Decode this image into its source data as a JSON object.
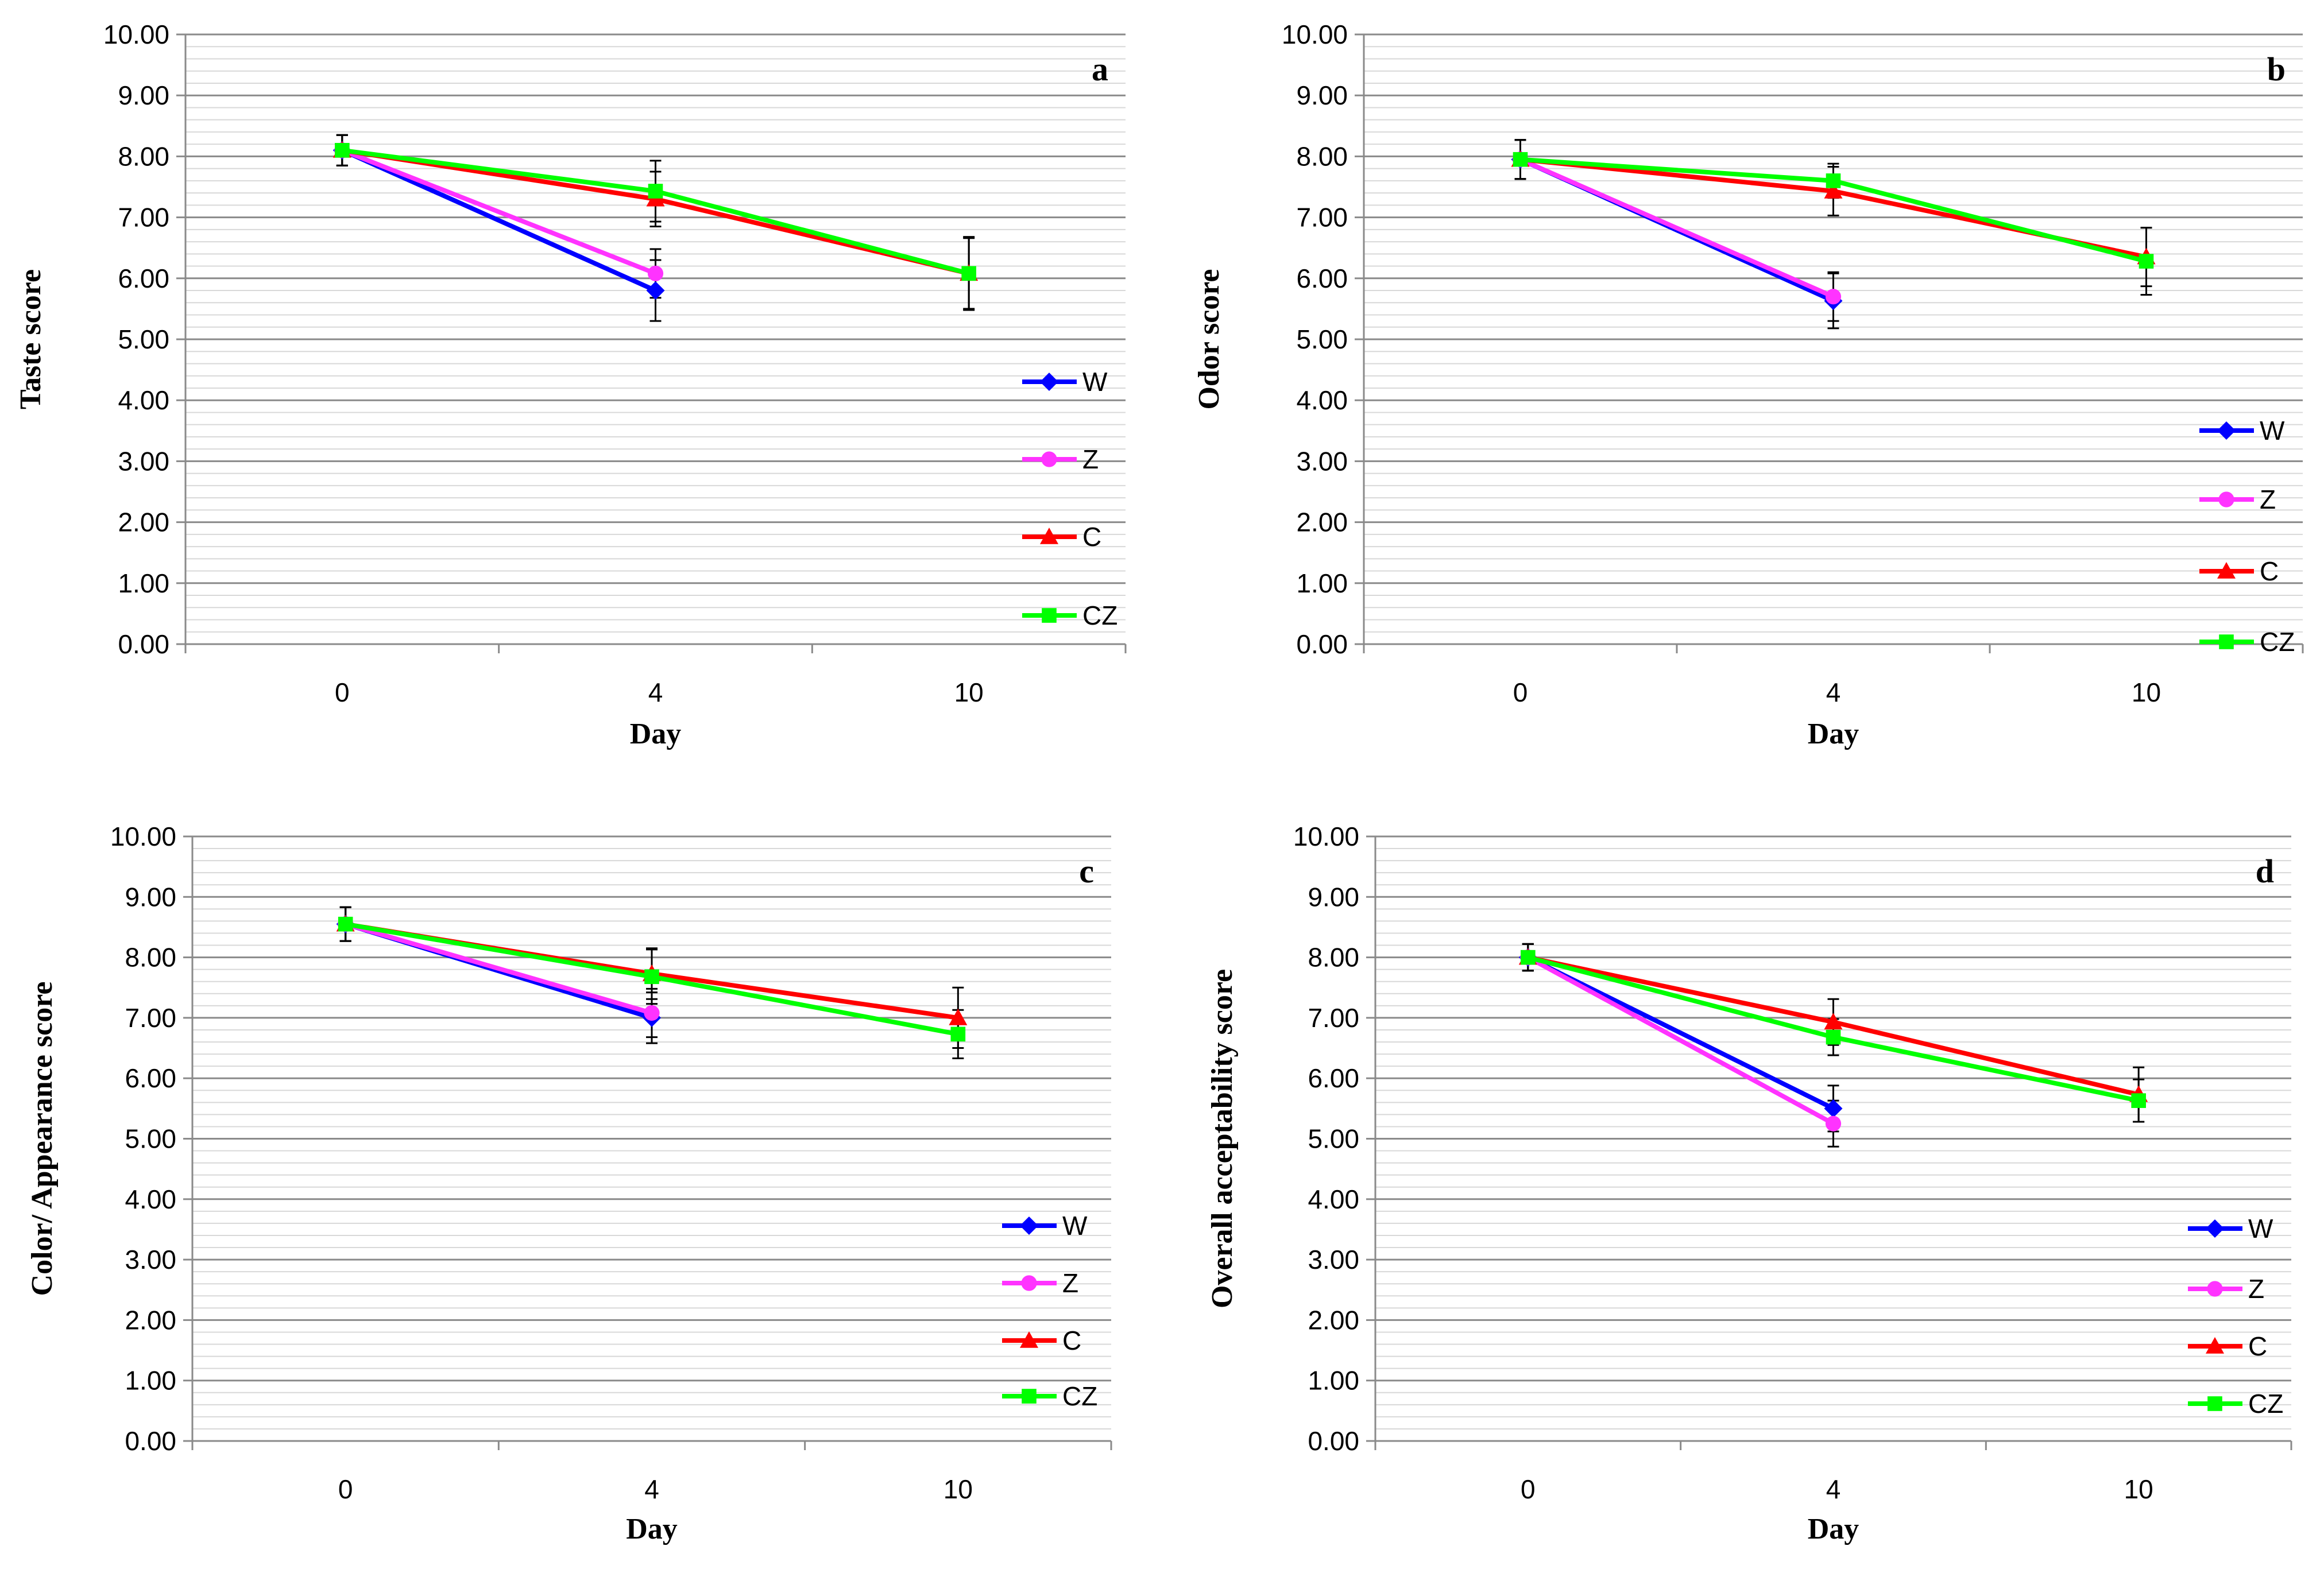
{
  "chart_data": [
    {
      "type": "line",
      "panel_letter": "a",
      "xlabel": "Day",
      "ylabel": "Taste score",
      "categories": [
        "0",
        "4",
        "10"
      ],
      "ylim": [
        0,
        10
      ],
      "y_ticks": [
        "0.00",
        "1.00",
        "2.00",
        "3.00",
        "4.00",
        "5.00",
        "6.00",
        "7.00",
        "8.00",
        "9.00",
        "10.00"
      ],
      "series": [
        {
          "name": "W",
          "color": "#0000ff",
          "marker": "diamond",
          "values": [
            8.1,
            5.8,
            null
          ],
          "errors": [
            0.25,
            0.5,
            null
          ]
        },
        {
          "name": "Z",
          "color": "#ff33ff",
          "marker": "circle",
          "values": [
            8.1,
            6.08,
            null
          ],
          "errors": [
            0.25,
            0.4,
            null
          ]
        },
        {
          "name": "C",
          "color": "#ff0000",
          "marker": "triangle",
          "values": [
            8.1,
            7.3,
            6.08
          ],
          "errors": [
            0.25,
            0.45,
            0.58
          ]
        },
        {
          "name": "CZ",
          "color": "#00ff00",
          "marker": "square",
          "values": [
            8.1,
            7.43,
            6.08
          ],
          "errors": [
            0.25,
            0.5,
            0.6
          ]
        }
      ]
    },
    {
      "type": "line",
      "panel_letter": "b",
      "xlabel": "Day",
      "ylabel": "Odor score",
      "categories": [
        "0",
        "4",
        "10"
      ],
      "ylim": [
        0,
        10
      ],
      "y_ticks": [
        "0.00",
        "1.00",
        "2.00",
        "3.00",
        "4.00",
        "5.00",
        "6.00",
        "7.00",
        "8.00",
        "9.00",
        "10.00"
      ],
      "series": [
        {
          "name": "W",
          "color": "#0000ff",
          "marker": "diamond",
          "values": [
            7.95,
            5.63,
            null
          ],
          "errors": [
            0.32,
            0.45,
            null
          ]
        },
        {
          "name": "Z",
          "color": "#ff33ff",
          "marker": "circle",
          "values": [
            7.95,
            5.7,
            null
          ],
          "errors": [
            0.32,
            0.4,
            null
          ]
        },
        {
          "name": "C",
          "color": "#ff0000",
          "marker": "triangle",
          "values": [
            7.95,
            7.43,
            6.35
          ],
          "errors": [
            0.32,
            0.4,
            0.48
          ]
        },
        {
          "name": "CZ",
          "color": "#00ff00",
          "marker": "square",
          "values": [
            7.95,
            7.6,
            6.28
          ],
          "errors": [
            0.32,
            0.28,
            0.55
          ]
        }
      ]
    },
    {
      "type": "line",
      "panel_letter": "c",
      "xlabel": "Day",
      "ylabel": "Color/ Appearance  score",
      "categories": [
        "0",
        "4",
        "10"
      ],
      "ylim": [
        0,
        10
      ],
      "y_ticks": [
        "0.00",
        "1.00",
        "2.00",
        "3.00",
        "4.00",
        "5.00",
        "6.00",
        "7.00",
        "8.00",
        "9.00",
        "10.00"
      ],
      "series": [
        {
          "name": "W",
          "color": "#0000ff",
          "marker": "diamond",
          "values": [
            8.55,
            7.0,
            null
          ],
          "errors": [
            0.28,
            0.42,
            null
          ]
        },
        {
          "name": "Z",
          "color": "#ff33ff",
          "marker": "circle",
          "values": [
            8.55,
            7.08,
            null
          ],
          "errors": [
            0.28,
            0.4,
            null
          ]
        },
        {
          "name": "C",
          "color": "#ff0000",
          "marker": "triangle",
          "values": [
            8.55,
            7.73,
            7.0
          ],
          "errors": [
            0.28,
            0.42,
            0.5
          ]
        },
        {
          "name": "CZ",
          "color": "#00ff00",
          "marker": "square",
          "values": [
            8.55,
            7.68,
            6.73
          ],
          "errors": [
            0.28,
            0.45,
            0.4
          ]
        }
      ]
    },
    {
      "type": "line",
      "panel_letter": "d",
      "xlabel": "Day",
      "ylabel": "Overall acceptability score",
      "categories": [
        "0",
        "4",
        "10"
      ],
      "ylim": [
        0,
        10
      ],
      "y_ticks": [
        "0.00",
        "1.00",
        "2.00",
        "3.00",
        "4.00",
        "5.00",
        "6.00",
        "7.00",
        "8.00",
        "9.00",
        "10.00"
      ],
      "series": [
        {
          "name": "W",
          "color": "#0000ff",
          "marker": "diamond",
          "values": [
            8.0,
            5.5,
            null
          ],
          "errors": [
            0.22,
            0.38,
            null
          ]
        },
        {
          "name": "Z",
          "color": "#ff33ff",
          "marker": "circle",
          "values": [
            8.0,
            5.25,
            null
          ],
          "errors": [
            0.22,
            0.38,
            null
          ]
        },
        {
          "name": "C",
          "color": "#ff0000",
          "marker": "triangle",
          "values": [
            8.0,
            6.93,
            5.73
          ],
          "errors": [
            0.22,
            0.38,
            0.45
          ]
        },
        {
          "name": "CZ",
          "color": "#00ff00",
          "marker": "square",
          "values": [
            8.0,
            6.68,
            5.63
          ],
          "errors": [
            0.22,
            0.3,
            0.35
          ]
        }
      ]
    }
  ]
}
